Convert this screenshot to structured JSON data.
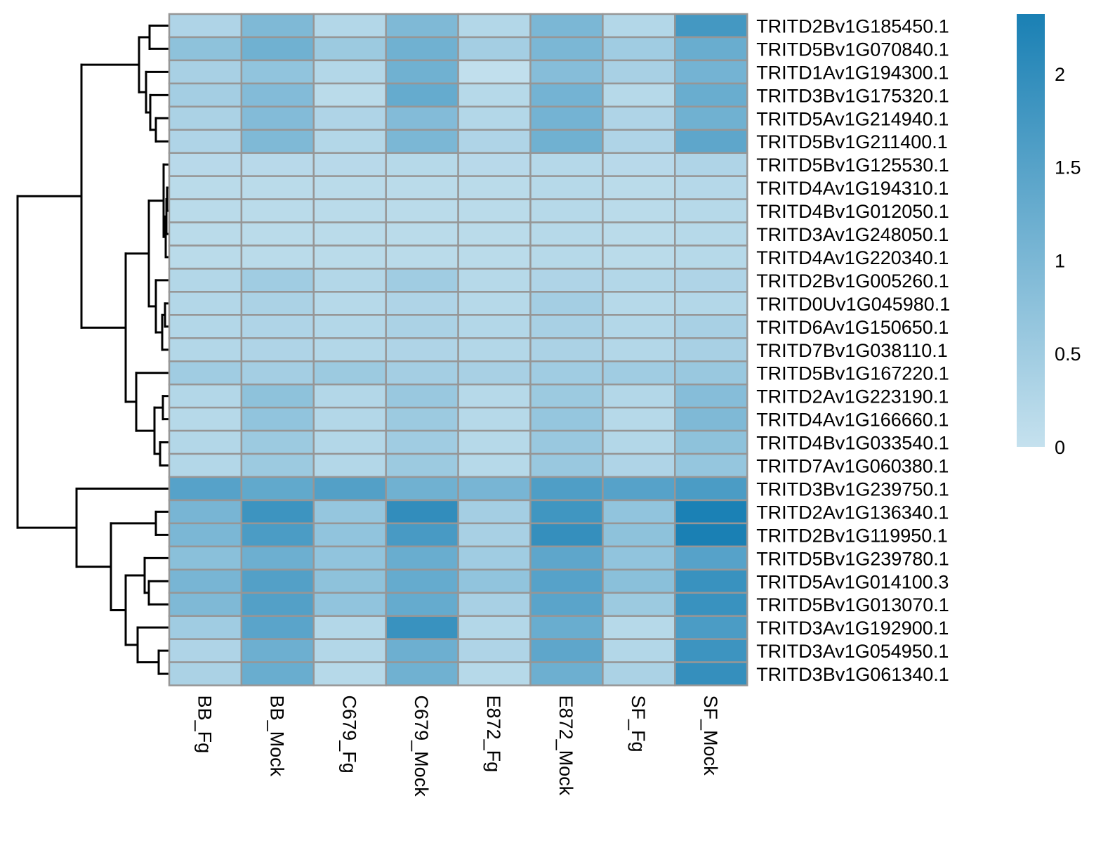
{
  "chart_data": {
    "type": "heatmap",
    "title": "",
    "xlabel": "",
    "ylabel": "",
    "columns": [
      "BB_Fg",
      "BB_Mock",
      "C679_Fg",
      "C679_Mock",
      "E872_Fg",
      "E872_Mock",
      "SF_Fg",
      "SF_Mock"
    ],
    "rows": [
      "TRITD2Bv1G185450.1",
      "TRITD5Bv1G070840.1",
      "TRITD1Av1G194300.1",
      "TRITD3Bv1G175320.1",
      "TRITD5Av1G214940.1",
      "TRITD5Bv1G211400.1",
      "TRITD5Bv1G125530.1",
      "TRITD4Av1G194310.1",
      "TRITD4Bv1G012050.1",
      "TRITD3Av1G248050.1",
      "TRITD4Av1G220340.1",
      "TRITD2Bv1G005260.1",
      "TRITD0Uv1G045980.1",
      "TRITD6Av1G150650.1",
      "TRITD7Bv1G038110.1",
      "TRITD5Bv1G167220.1",
      "TRITD2Av1G223190.1",
      "TRITD4Av1G166660.1",
      "TRITD4Bv1G033540.1",
      "TRITD7Av1G060380.1",
      "TRITD3Bv1G239750.1",
      "TRITD2Av1G136340.1",
      "TRITD2Bv1G119950.1",
      "TRITD5Bv1G239780.1",
      "TRITD5Av1G014100.3",
      "TRITD5Bv1G013070.1",
      "TRITD3Av1G192900.1",
      "TRITD3Av1G054950.1",
      "TRITD3Bv1G061340.1"
    ],
    "values": [
      [
        0.3,
        0.95,
        0.25,
        0.95,
        0.25,
        1.0,
        0.25,
        1.75
      ],
      [
        0.75,
        1.15,
        0.55,
        1.15,
        0.45,
        1.0,
        0.5,
        1.25
      ],
      [
        0.4,
        0.7,
        0.25,
        1.15,
        0.05,
        0.85,
        0.4,
        1.1
      ],
      [
        0.45,
        0.9,
        0.15,
        1.3,
        0.2,
        1.1,
        0.2,
        1.25
      ],
      [
        0.35,
        0.9,
        0.3,
        0.9,
        0.25,
        1.1,
        0.3,
        1.15
      ],
      [
        0.3,
        0.95,
        0.25,
        1.0,
        0.3,
        1.15,
        0.3,
        1.4
      ],
      [
        0.18,
        0.18,
        0.18,
        0.2,
        0.18,
        0.22,
        0.18,
        0.3
      ],
      [
        0.15,
        0.15,
        0.15,
        0.15,
        0.15,
        0.2,
        0.15,
        0.22
      ],
      [
        0.15,
        0.15,
        0.15,
        0.15,
        0.15,
        0.2,
        0.15,
        0.2
      ],
      [
        0.15,
        0.15,
        0.15,
        0.15,
        0.15,
        0.2,
        0.15,
        0.2
      ],
      [
        0.15,
        0.15,
        0.15,
        0.15,
        0.15,
        0.2,
        0.15,
        0.2
      ],
      [
        0.25,
        0.5,
        0.25,
        0.5,
        0.2,
        0.3,
        0.25,
        0.3
      ],
      [
        0.25,
        0.35,
        0.2,
        0.3,
        0.2,
        0.45,
        0.2,
        0.25
      ],
      [
        0.25,
        0.3,
        0.25,
        0.35,
        0.25,
        0.4,
        0.25,
        0.4
      ],
      [
        0.25,
        0.3,
        0.25,
        0.3,
        0.25,
        0.35,
        0.25,
        0.4
      ],
      [
        0.5,
        0.45,
        0.55,
        0.45,
        0.4,
        0.5,
        0.5,
        0.6
      ],
      [
        0.25,
        0.75,
        0.25,
        0.6,
        0.2,
        0.55,
        0.25,
        0.85
      ],
      [
        0.2,
        0.7,
        0.25,
        0.55,
        0.2,
        0.65,
        0.2,
        0.95
      ],
      [
        0.25,
        0.55,
        0.25,
        0.5,
        0.2,
        0.6,
        0.25,
        0.75
      ],
      [
        0.25,
        0.55,
        0.25,
        0.55,
        0.2,
        0.6,
        0.3,
        0.65
      ],
      [
        1.5,
        1.35,
        1.55,
        1.15,
        1.05,
        1.6,
        1.5,
        1.65
      ],
      [
        1.05,
        1.85,
        0.65,
        2.0,
        0.45,
        1.8,
        0.7,
        2.3
      ],
      [
        1.0,
        1.65,
        0.7,
        1.7,
        0.4,
        1.95,
        0.75,
        2.4
      ],
      [
        0.8,
        1.2,
        0.7,
        1.25,
        0.5,
        1.4,
        0.7,
        1.5
      ],
      [
        1.05,
        1.55,
        0.75,
        1.3,
        0.7,
        1.5,
        0.8,
        1.9
      ],
      [
        0.95,
        1.55,
        0.7,
        1.3,
        0.4,
        1.45,
        0.55,
        1.9
      ],
      [
        0.5,
        1.45,
        0.25,
        1.9,
        0.25,
        1.25,
        0.2,
        1.65
      ],
      [
        0.3,
        1.2,
        0.25,
        1.2,
        0.3,
        1.4,
        0.25,
        1.85
      ],
      [
        0.35,
        1.25,
        0.2,
        1.15,
        0.2,
        1.2,
        0.35,
        1.95
      ]
    ],
    "legend": {
      "position": "right",
      "ticks": [
        "2",
        "1.5",
        "1",
        "0.5",
        "0"
      ],
      "range": [
        0,
        2.32
      ],
      "color_low": "#c5e1ee",
      "color_high": "#1a80b4"
    },
    "dendrogram": "left",
    "cell_border_color": "#969696"
  }
}
